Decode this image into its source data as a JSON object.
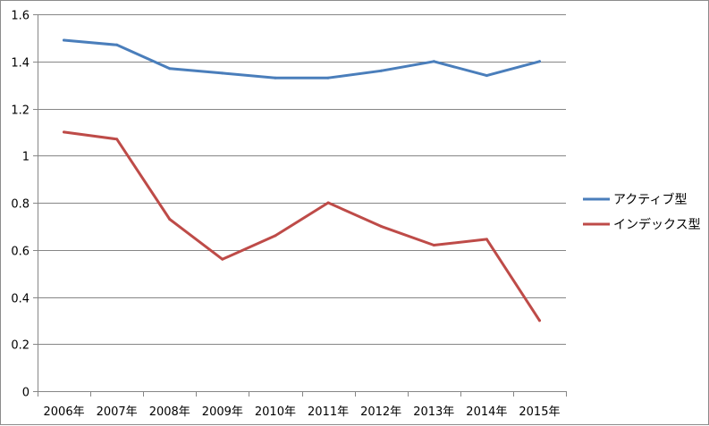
{
  "chart_data": {
    "type": "line",
    "title": "",
    "xlabel": "",
    "ylabel": "",
    "categories": [
      "2006年",
      "2007年",
      "2008年",
      "2009年",
      "2010年",
      "2011年",
      "2012年",
      "2013年",
      "2014年",
      "2015年"
    ],
    "ylim": [
      0,
      1.6
    ],
    "yticks": [
      0,
      0.2,
      0.4,
      0.6,
      0.8,
      1,
      1.2,
      1.4,
      1.6
    ],
    "ytick_labels": [
      "0",
      "0.2",
      "0.4",
      "0.6",
      "0.8",
      "1",
      "1.2",
      "1.4",
      "1.6"
    ],
    "grid": true,
    "legend_position": "right",
    "series": [
      {
        "name": "アクティブ型",
        "color": "#4a7ebb",
        "values": [
          1.49,
          1.47,
          1.37,
          1.35,
          1.33,
          1.33,
          1.36,
          1.4,
          1.34,
          1.4
        ]
      },
      {
        "name": "インデックス型",
        "color": "#be4b48",
        "values": [
          1.1,
          1.07,
          0.73,
          0.56,
          0.66,
          0.8,
          0.7,
          0.62,
          0.645,
          0.3
        ]
      }
    ]
  }
}
